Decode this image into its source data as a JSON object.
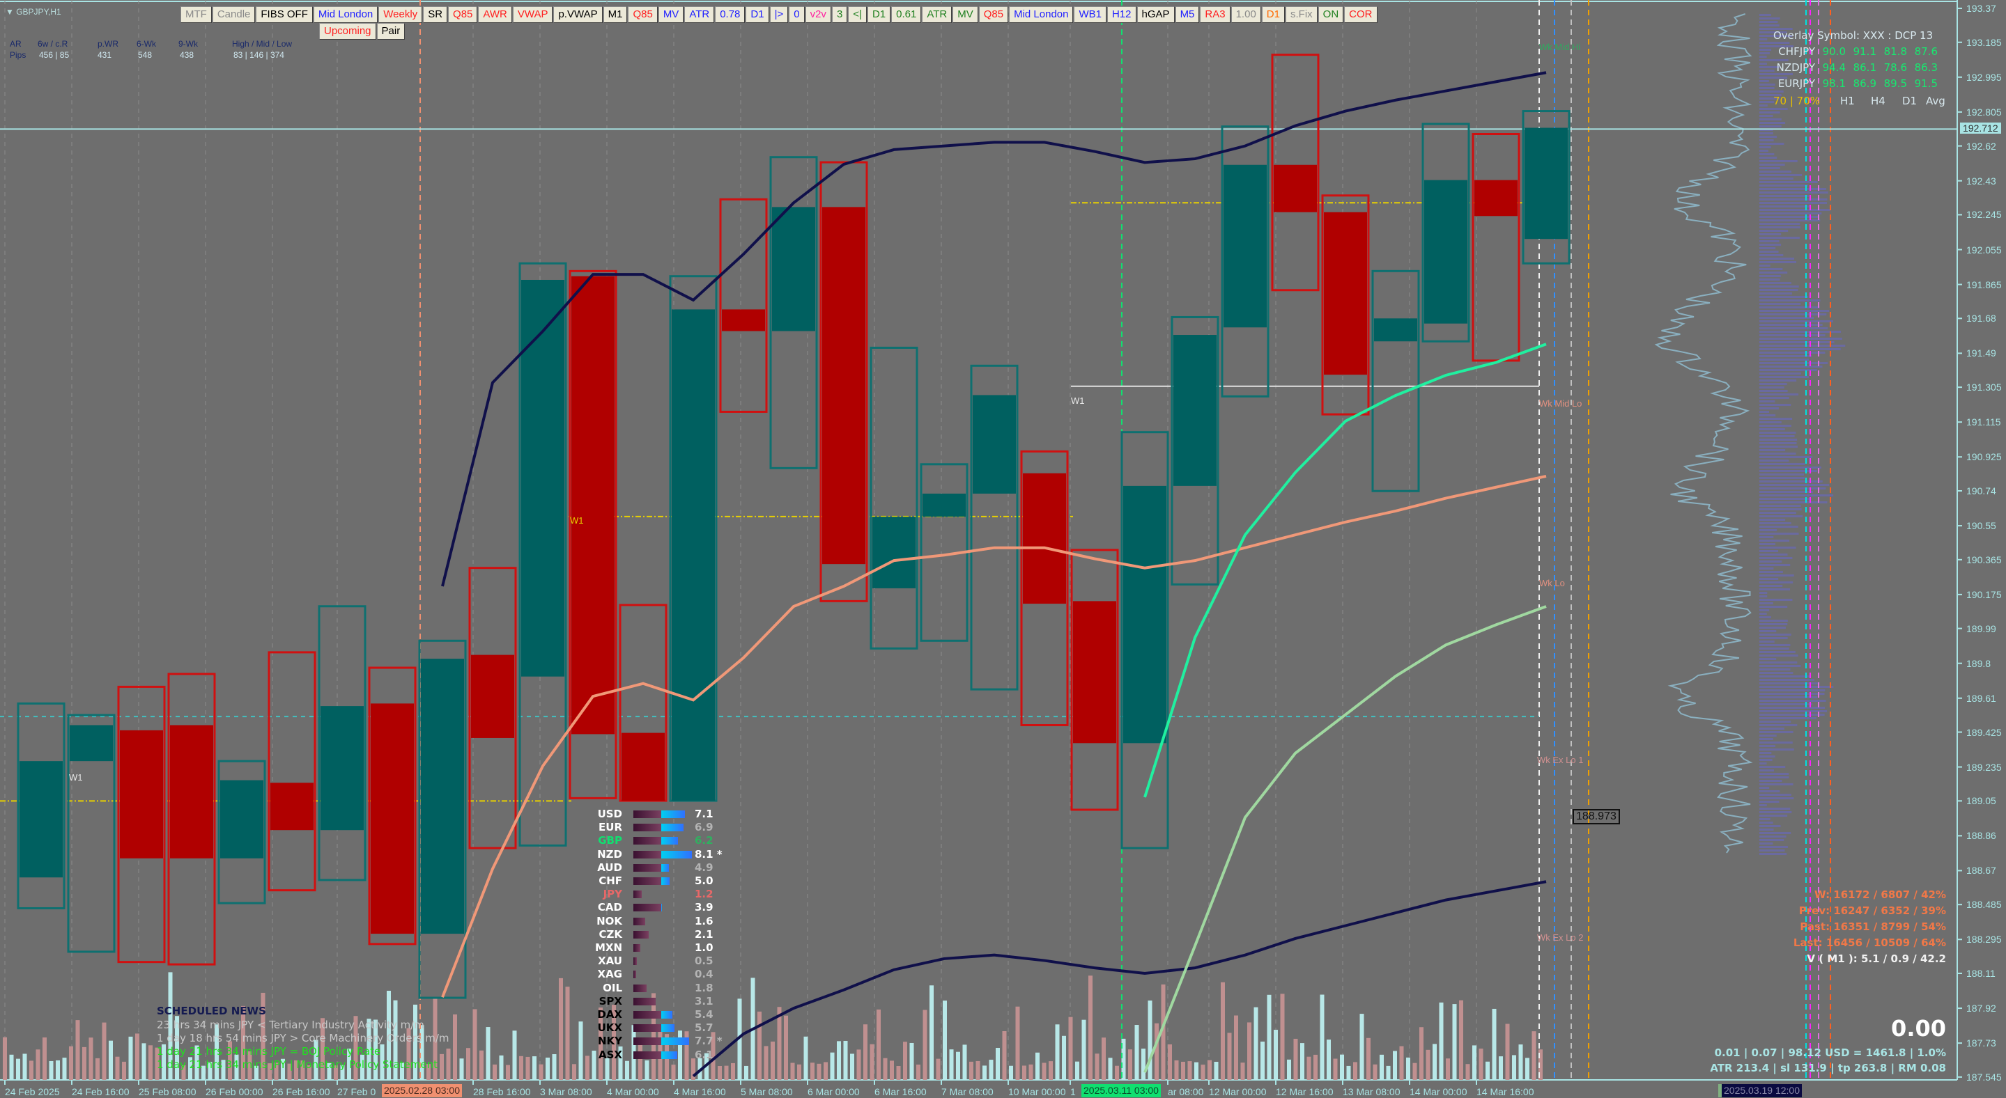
{
  "window": {
    "symbol_label": "GBPJPY,H1"
  },
  "toolbar": {
    "buttons": [
      {
        "label": "MTF",
        "color": "#8a8a8a"
      },
      {
        "label": "Candle",
        "color": "#8a8a8a"
      },
      {
        "label": "FIBS OFF",
        "color": "#000000"
      },
      {
        "label": "Mid London",
        "color": "#2020ff"
      },
      {
        "label": "Weekly",
        "color": "#ff2020"
      },
      {
        "label": "SR",
        "color": "#000000"
      },
      {
        "label": "Q85",
        "color": "#ff2020"
      },
      {
        "label": "AWR",
        "color": "#ff2020"
      },
      {
        "label": "VWAP",
        "color": "#ff2020"
      },
      {
        "label": "p.VWAP",
        "color": "#000000"
      },
      {
        "label": "M1",
        "color": "#000000"
      },
      {
        "label": "Q85",
        "color": "#ff2020"
      },
      {
        "label": "MV",
        "color": "#2020ff"
      },
      {
        "label": "ATR",
        "color": "#2020ff"
      },
      {
        "label": "0.78",
        "color": "#2020ff"
      },
      {
        "label": "D1",
        "color": "#2020ff"
      },
      {
        "label": "|>",
        "color": "#2020ff"
      },
      {
        "label": "0",
        "color": "#2020ff"
      },
      {
        "label": "v2v",
        "color": "#ff20a0"
      },
      {
        "label": "3",
        "color": "#208020"
      },
      {
        "label": "<|",
        "color": "#208020"
      },
      {
        "label": "D1",
        "color": "#208020"
      },
      {
        "label": "0.61",
        "color": "#208020"
      },
      {
        "label": "ATR",
        "color": "#208020"
      },
      {
        "label": "MV",
        "color": "#208020"
      },
      {
        "label": "Q85",
        "color": "#ff2020"
      },
      {
        "label": "Mid London",
        "color": "#2020ff"
      },
      {
        "label": "WB1",
        "color": "#2020ff"
      },
      {
        "label": "H12",
        "color": "#2020ff"
      },
      {
        "label": "hGAP",
        "color": "#000000"
      },
      {
        "label": "M5",
        "color": "#2020ff"
      },
      {
        "label": "RA3",
        "color": "#ff2020"
      },
      {
        "label": "1.00",
        "color": "#8a8a8a"
      },
      {
        "label": "D1",
        "color": "#ff6a00"
      },
      {
        "label": "s.Fix",
        "color": "#8a8a8a"
      },
      {
        "label": "ON",
        "color": "#208020"
      },
      {
        "label": "COR",
        "color": "#ff2020"
      }
    ],
    "row2": [
      {
        "label": "Upcoming",
        "color": "#ff2020"
      },
      {
        "label": "Pair",
        "color": "#000000"
      }
    ]
  },
  "ar_table": {
    "headers": [
      "AR",
      "6w / c.R",
      "p.WR",
      "6-Wk",
      "9-Wk",
      "High / Mid / Low"
    ],
    "row_label": "Pips",
    "values": [
      "456 | 85",
      "431",
      "548",
      "438",
      "83  |  146  |  374"
    ]
  },
  "overlay": {
    "title": "Overlay Symbol: XXX : DCP 13",
    "rows": [
      {
        "pair": "CHFJPY",
        "values": [
          "90.0",
          "91.1",
          "81.8",
          "87.6"
        ]
      },
      {
        "pair": "NZDJPY",
        "values": [
          "94.4",
          "86.1",
          "78.6",
          "86.3"
        ]
      },
      {
        "pair": "EURJPY",
        "values": [
          "98.1",
          "86.9",
          "89.5",
          "91.5"
        ]
      }
    ],
    "threshold": "70 | 70%",
    "columns": [
      "H1",
      "H4",
      "D1",
      "Avg"
    ]
  },
  "stats": {
    "w": "W: 16172 / 6807 / 42%",
    "prev": "Prev: 16247 / 6352 / 39%",
    "past": "Past: 16351 / 8799 / 54%",
    "last": "Last: 16456 / 10509 / 64%",
    "volume": "V ( M1 ): 5.1 / 0.9 / 42.2",
    "pnl": "0.00",
    "risk_line": "0.01  |  0.07  |  98.12 USD = 1461.8  |  1.0%",
    "atr_line": "ATR 213.4  | sl 131.9  |  tp 263.8  |  RM 0.08"
  },
  "news": {
    "title": "SCHEDULED NEWS",
    "items": [
      {
        "text": "23 hrs 34 mins  JPY  <  Tertiary Industry Activity m/m",
        "color": "#c8c8c8"
      },
      {
        "text": "1 day 18 hrs 54 mins  JPY  >  Core Machinery Orders m/m",
        "color": "#c8c8c8"
      },
      {
        "text": "1 day 21 hrs 34 mins  JPY  =  BOJ Policy Rate",
        "color": "#20e020"
      },
      {
        "text": "1 day 21 hrs 34 mins  JPY  |  Monetary Policy Statement",
        "color": "#20e020"
      }
    ]
  },
  "strength": [
    {
      "label": "USD",
      "value": "7.1",
      "lc": "#ffffff",
      "vc": "#ffffff"
    },
    {
      "label": "EUR",
      "value": "6.9",
      "lc": "#ffffff",
      "vc": "#b4b4b4"
    },
    {
      "label": "GBP",
      "value": "6.2",
      "lc": "#10e070",
      "vc": "#30b060"
    },
    {
      "label": "NZD",
      "value": "8.1 *",
      "lc": "#ffffff",
      "vc": "#ffffff"
    },
    {
      "label": "AUD",
      "value": "4.9",
      "lc": "#ffffff",
      "vc": "#b4b4b4"
    },
    {
      "label": "CHF",
      "value": "5.0",
      "lc": "#ffffff",
      "vc": "#ffffff"
    },
    {
      "label": "JPY",
      "value": "1.2",
      "lc": "#e86868",
      "vc": "#e86868"
    },
    {
      "label": "CAD",
      "value": "3.9",
      "lc": "#ffffff",
      "vc": "#ffffff"
    },
    {
      "label": "NOK",
      "value": "1.6",
      "lc": "#ffffff",
      "vc": "#ffffff"
    },
    {
      "label": "CZK",
      "value": "2.1",
      "lc": "#ffffff",
      "vc": "#ffffff"
    },
    {
      "label": "MXN",
      "value": "1.0",
      "lc": "#ffffff",
      "vc": "#ffffff"
    },
    {
      "label": "XAU",
      "value": "0.5",
      "lc": "#ffffff",
      "vc": "#b4b4b4"
    },
    {
      "label": "XAG",
      "value": "0.4",
      "lc": "#ffffff",
      "vc": "#b4b4b4"
    },
    {
      "label": "OIL",
      "value": "1.8",
      "lc": "#ffffff",
      "vc": "#b4b4b4"
    },
    {
      "label": "SPX",
      "value": "3.1",
      "lc": "#000000",
      "vc": "#b4b4b4"
    },
    {
      "label": "DAX",
      "value": "5.4",
      "lc": "#000000",
      "vc": "#b4b4b4"
    },
    {
      "label": "UKX",
      "value": "5.7",
      "lc": "#000000",
      "vc": "#b4b4b4"
    },
    {
      "label": "NKY",
      "value": "7.7 *",
      "lc": "#000000",
      "vc": "#b4b4b4"
    },
    {
      "label": "ASX",
      "value": "6.1",
      "lc": "#000000",
      "vc": "#b4b4b4"
    }
  ],
  "levels": {
    "wk_mid_hi": "Wk Mid Hi",
    "wk_mid_lo": "Wk Mid Lo",
    "wk_lo": "Wk Lo",
    "wk_ex_lo_1": "Wk Ex Lo 1",
    "wk_ex_lo_2": "Wk Ex Lo 2",
    "w1": "W1",
    "price_tag": "188.973"
  },
  "time_axis": {
    "labels": [
      "24 Feb 2025",
      "24 Feb 16:00",
      "25 Feb 08:00",
      "26 Feb 00:00",
      "26 Feb 16:00",
      "27 Feb 0",
      "",
      "28 Feb 16:00",
      "3 Mar 08:00",
      "4 Mar 00:00",
      "4 Mar 16:00",
      "5 Mar 08:00",
      "6 Mar 00:00",
      "6 Mar 16:00",
      "7 Mar 08:00",
      "",
      "10 Mar 00:00",
      "1",
      "",
      "ar 08:00",
      "12 Mar 00:00",
      "12 Mar 16:00",
      "13 Mar 08:00",
      "14 Mar 00:00",
      "14 Mar 16:00"
    ],
    "crosshair_1": "2025.02.28 03:00",
    "crosshair_2": "2025.03.11 03:00",
    "future_marker": "2025.03.19 12:00"
  },
  "colors": {
    "bull": "#006060",
    "bear": "#b00000",
    "bull_outline": "#0e7070",
    "bear_outline": "#d01010",
    "background": "#6e6e6e",
    "axis": "#a8e4e4"
  },
  "chart_data": {
    "type": "candlestick",
    "symbol": "GBPJPY",
    "timeframe": "H1",
    "ylim": [
      187.545,
      193.37
    ],
    "price_ticks": [
      193.37,
      193.185,
      192.995,
      192.805,
      192.62,
      192.43,
      192.245,
      192.055,
      191.865,
      191.68,
      191.49,
      191.305,
      191.115,
      190.925,
      190.74,
      190.55,
      190.365,
      190.175,
      189.99,
      189.8,
      189.61,
      189.425,
      189.235,
      189.05,
      188.86,
      188.67,
      188.485,
      188.295,
      188.11,
      187.92,
      187.73,
      187.545
    ],
    "current_price": 192.712,
    "candles": [
      [
        188.633,
        189.581,
        188.465,
        189.267
      ],
      [
        189.267,
        189.518,
        188.228,
        189.463
      ],
      [
        189.435,
        189.672,
        188.172,
        188.737
      ],
      [
        189.463,
        189.742,
        188.159,
        188.737
      ],
      [
        188.737,
        189.267,
        188.493,
        189.163
      ],
      [
        189.149,
        189.86,
        188.563,
        188.891
      ],
      [
        188.891,
        190.111,
        188.619,
        189.567
      ],
      [
        189.581,
        189.776,
        188.27,
        188.326
      ],
      [
        188.326,
        189.923,
        187.977,
        189.825
      ],
      [
        189.846,
        190.32,
        188.793,
        189.393
      ],
      [
        189.728,
        191.98,
        188.807,
        191.89
      ],
      [
        191.91,
        191.938,
        189.065,
        189.414
      ],
      [
        189.421,
        190.118,
        189.051,
        189.051
      ],
      [
        189.051,
        191.91,
        189.051,
        191.729
      ],
      [
        191.729,
        192.329,
        191.171,
        191.611
      ],
      [
        191.611,
        192.559,
        190.864,
        192.287
      ],
      [
        192.287,
        192.531,
        190.139,
        190.341
      ],
      [
        190.209,
        191.52,
        189.881,
        190.599
      ],
      [
        190.599,
        190.885,
        189.923,
        190.725
      ],
      [
        190.725,
        191.422,
        189.658,
        191.262
      ],
      [
        190.836,
        190.955,
        189.463,
        190.125
      ],
      [
        190.139,
        190.418,
        189.002,
        189.365
      ],
      [
        189.365,
        191.06,
        188.793,
        190.767
      ],
      [
        190.767,
        191.687,
        190.23,
        191.59
      ],
      [
        191.631,
        192.726,
        191.255,
        192.517
      ],
      [
        192.517,
        193.117,
        191.834,
        192.259
      ],
      [
        192.259,
        192.35,
        191.157,
        191.373
      ],
      [
        191.555,
        191.938,
        190.739,
        191.68
      ],
      [
        191.652,
        192.74,
        191.555,
        192.434
      ],
      [
        192.434,
        192.685,
        191.45,
        192.238
      ],
      [
        192.113,
        192.81,
        191.98,
        192.719
      ]
    ],
    "candle_format": [
      "open",
      "high",
      "low",
      "close"
    ],
    "series": [
      {
        "start_index": 8,
        "color": "#10104a",
        "values": [
          190.22,
          191.33,
          191.61,
          191.92,
          191.92,
          191.78,
          192.03,
          192.31,
          192.52,
          192.6,
          192.62,
          192.64,
          192.64,
          192.59,
          192.53,
          192.55,
          192.62,
          192.73,
          192.81,
          192.87,
          192.92,
          192.97,
          193.02
        ]
      },
      {
        "start_index": 13,
        "color": "#10104a",
        "values": [
          187.55,
          187.78,
          187.92,
          188.02,
          188.13,
          188.19,
          188.21,
          188.18,
          188.14,
          188.11,
          188.14,
          188.21,
          188.3,
          188.37,
          188.44,
          188.51,
          188.56,
          188.61
        ]
      },
      {
        "start_index": 8,
        "color": "#f09878",
        "values": [
          187.98,
          188.68,
          189.24,
          189.62,
          189.69,
          189.6,
          189.83,
          190.11,
          190.22,
          190.36,
          190.39,
          190.43,
          190.43,
          190.37,
          190.32,
          190.36,
          190.43,
          190.5,
          190.57,
          190.63,
          190.7,
          190.76,
          190.82
        ]
      },
      {
        "start_index": 22,
        "color": "#a0d8a0",
        "values": [
          187.57,
          188.26,
          188.96,
          189.31,
          189.52,
          189.73,
          189.9,
          190.01,
          190.11
        ]
      },
      {
        "start_index": 22,
        "color": "#20f0a0",
        "values": [
          189.07,
          189.94,
          190.5,
          190.84,
          191.12,
          191.26,
          191.37,
          191.44,
          191.54
        ]
      }
    ]
  }
}
